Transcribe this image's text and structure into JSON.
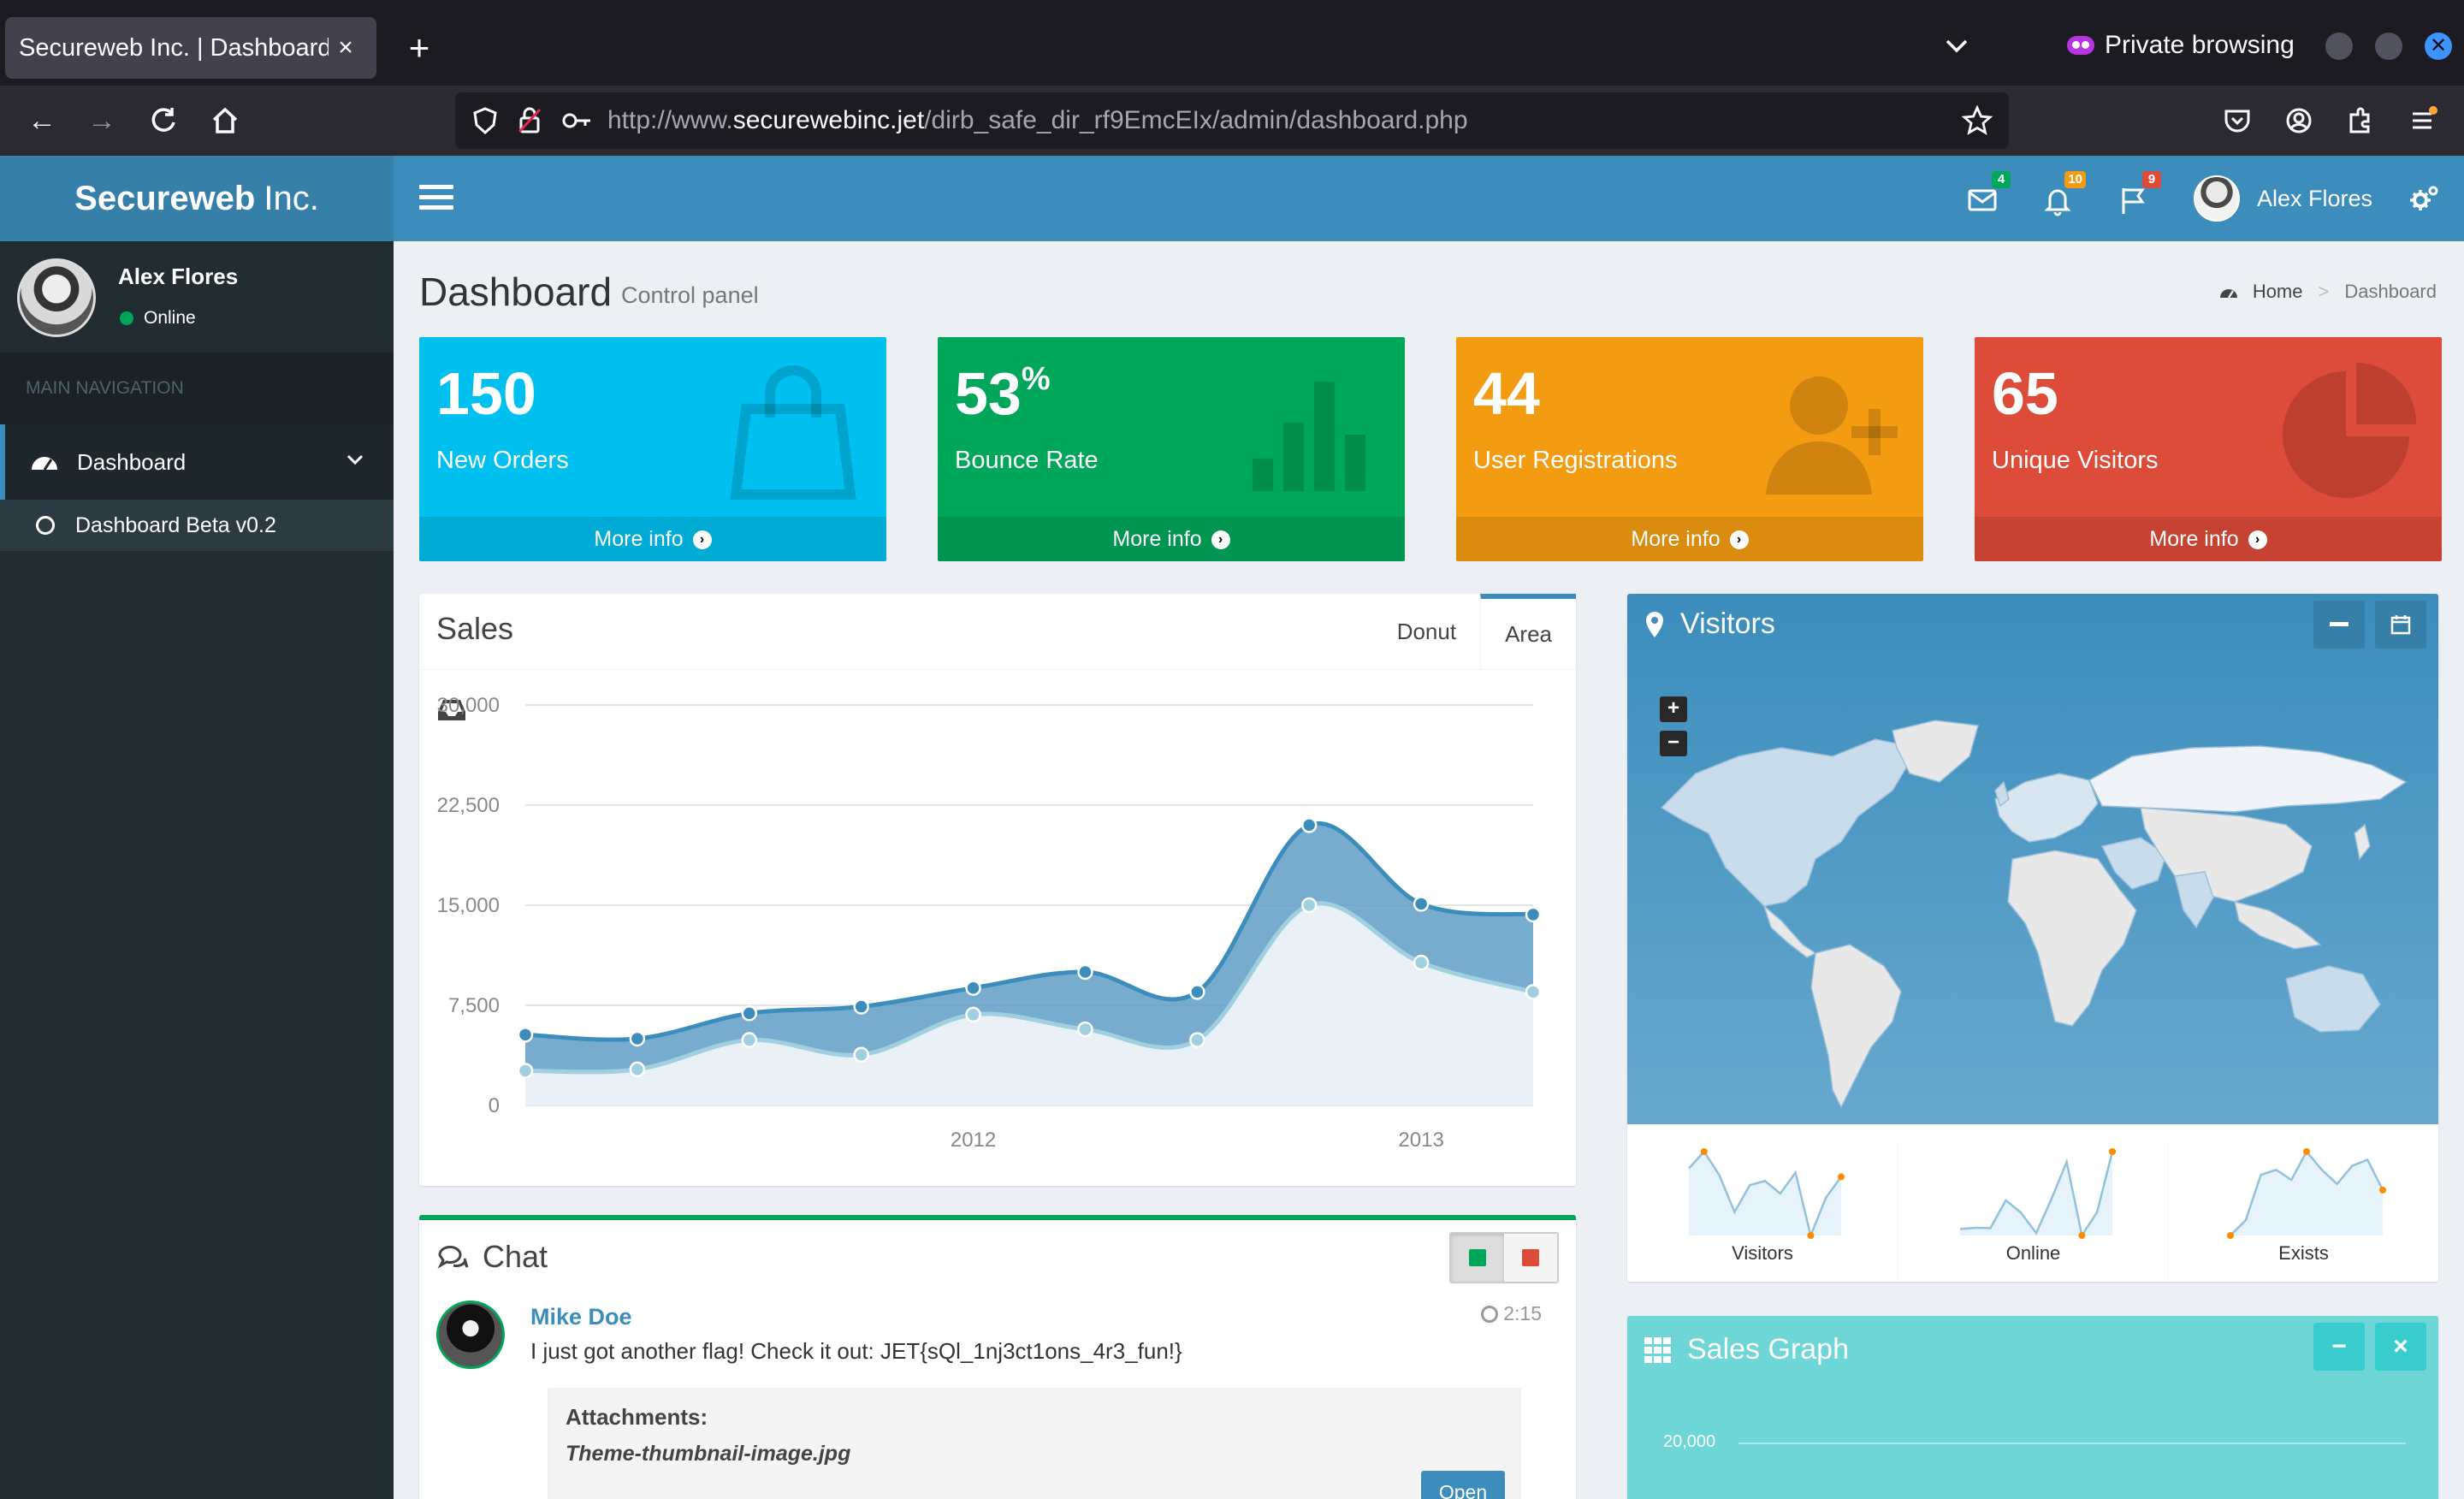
{
  "browser": {
    "tab_title": "Secureweb Inc. | Dashboard",
    "tab_close": "×",
    "new_tab": "+",
    "private_label": "Private browsing",
    "url_prefix": "http://www.",
    "url_host": "securewebinc.jet",
    "url_path": "/dirb_safe_dir_rf9EmcEIx/admin/dashboard.php"
  },
  "header": {
    "brand_bold": "Secureweb",
    "brand_light": "Inc.",
    "messages_count": "4",
    "notifications_count": "10",
    "tasks_count": "9",
    "user_name": "Alex Flores",
    "badge_colors": {
      "messages": "#00a65a",
      "notifications": "#f39c12",
      "tasks": "#dd4b39"
    }
  },
  "sidebar": {
    "user_name": "Alex Flores",
    "status": "Online",
    "nav_header": "MAIN NAVIGATION",
    "items": [
      {
        "label": "Dashboard",
        "icon": "dashboard-icon",
        "expanded": true
      },
      {
        "label": "Dashboard Beta v0.2",
        "icon": "circle-icon"
      }
    ]
  },
  "content": {
    "title": "Dashboard",
    "subtitle": "Control panel",
    "breadcrumb": [
      "Home",
      "Dashboard"
    ]
  },
  "stats": [
    {
      "value": "150",
      "suffix": "",
      "label": "New Orders",
      "footer": "More info",
      "color": "#00c0ef",
      "icon": "shopping-bag-icon"
    },
    {
      "value": "53",
      "suffix": "%",
      "label": "Bounce Rate",
      "footer": "More info",
      "color": "#00a65a",
      "icon": "bar-chart-icon"
    },
    {
      "value": "44",
      "suffix": "",
      "label": "User Registrations",
      "footer": "More info",
      "color": "#f39c12",
      "icon": "user-plus-icon"
    },
    {
      "value": "65",
      "suffix": "",
      "label": "Unique Visitors",
      "footer": "More info",
      "color": "#dd4b39",
      "icon": "pie-chart-icon"
    }
  ],
  "sales": {
    "title": "Sales",
    "tabs": [
      "Donut",
      "Area"
    ],
    "active_tab": "Area"
  },
  "chart_data": {
    "type": "area",
    "ylim": [
      0,
      30000
    ],
    "yticks": [
      "30,000",
      "22,500",
      "15,000",
      "7,500",
      "0"
    ],
    "ytick_values": [
      30000,
      22500,
      15000,
      7500,
      0
    ],
    "xticks": [
      "2012",
      "2013"
    ],
    "xtick_values": [
      2012.0,
      2013.0
    ],
    "x": [
      2011.0,
      2011.25,
      2011.5,
      2011.75,
      2012.0,
      2012.25,
      2012.5,
      2012.75,
      2013.0,
      2013.25
    ],
    "series": [
      {
        "values": [
          5300,
          5000,
          6900,
          7400,
          8800,
          10000,
          8500,
          21000,
          15100,
          14300
        ],
        "color": "#3c8dbc"
      },
      {
        "values": [
          2600,
          2700,
          4900,
          3800,
          6800,
          5700,
          4900,
          15000,
          10700,
          8500
        ],
        "color": "#a0d0e0"
      }
    ],
    "grid": true
  },
  "chat": {
    "title": "Chat",
    "status_colors": [
      "#00a65a",
      "#dd4b39"
    ],
    "message": {
      "author": "Mike Doe",
      "time": "2:15",
      "text": "I just got another flag! Check it out: JET{sQl_1nj3ct1ons_4r3_fun!}",
      "attachments_label": "Attachments:",
      "attachment_file": "Theme-thumbnail-image.jpg",
      "open_label": "Open"
    }
  },
  "visitors": {
    "title": "Visitors",
    "zoom_in": "+",
    "zoom_out": "−",
    "sparklines": [
      {
        "label": "Visitors",
        "values": [
          1000,
          1200,
          920,
          479,
          800,
          850,
          700,
          950,
          200,
          650,
          900
        ]
      },
      {
        "label": "Online",
        "values": [
          819,
          823,
          822,
          905,
          868,
          807,
          909,
          1019,
          800,
          870,
          1050
        ]
      },
      {
        "label": "Exists",
        "values": [
          50,
          200,
          650,
          700,
          600,
          880,
          700,
          560,
          740,
          800,
          500
        ]
      }
    ]
  },
  "sales_graph": {
    "title": "Sales Graph",
    "ytick": "20,000",
    "minimize": "−",
    "close": "×"
  }
}
